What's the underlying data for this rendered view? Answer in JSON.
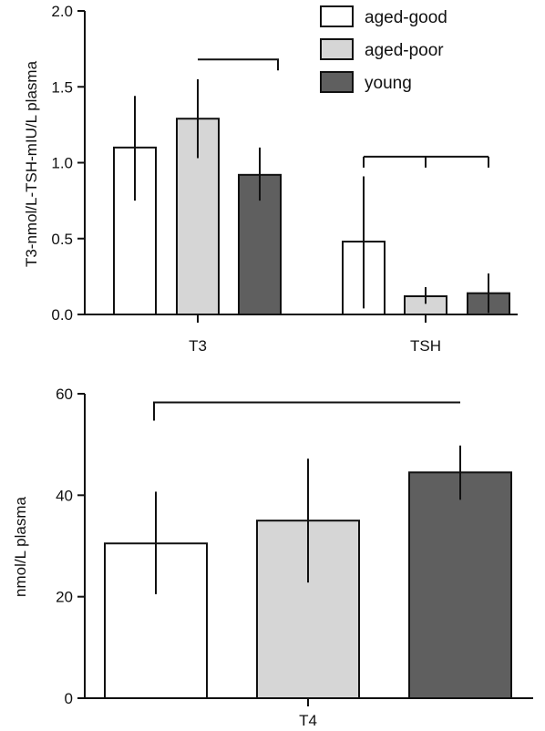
{
  "chart_data": [
    {
      "type": "bar",
      "title": "",
      "xlabel": "",
      "ylabel": "T3-nmol/L-TSH-mIU/L plasma",
      "ylim": [
        0,
        2.0
      ],
      "yticks": [
        "0.0",
        "0.5",
        "1.0",
        "1.5",
        "2.0"
      ],
      "categories": [
        "T3",
        "TSH"
      ],
      "series": [
        {
          "name": "aged-good",
          "values": [
            1.1,
            0.48
          ],
          "err_low": [
            0.75,
            0.04
          ],
          "err_high": [
            1.44,
            0.91
          ],
          "color": "#ffffff"
        },
        {
          "name": "aged-poor",
          "values": [
            1.29,
            0.12
          ],
          "err_low": [
            1.03,
            0.07
          ],
          "err_high": [
            1.55,
            0.18
          ],
          "color": "#d6d6d6"
        },
        {
          "name": "young",
          "values": [
            0.92,
            0.14
          ],
          "err_low": [
            0.75,
            0.01
          ],
          "err_high": [
            1.1,
            0.27
          ],
          "color": "#5f5f5f"
        }
      ],
      "significance": [
        {
          "category": "T3",
          "from_series": 1,
          "to_series": 2,
          "level": 1.68
        },
        {
          "category": "TSH",
          "from_series": 0,
          "to_series": 2,
          "level": 1.04
        }
      ],
      "legend": {
        "position": "top-right"
      },
      "grid": false
    },
    {
      "type": "bar",
      "title": "",
      "xlabel": "",
      "ylabel": "nmol/L plasma",
      "ylim": [
        0,
        60
      ],
      "yticks": [
        "0",
        "20",
        "40",
        "60"
      ],
      "categories": [
        "T4"
      ],
      "series": [
        {
          "name": "aged-good",
          "values": [
            30.5
          ],
          "err_low": [
            20.5
          ],
          "err_high": [
            40.7
          ],
          "color": "#ffffff"
        },
        {
          "name": "aged-poor",
          "values": [
            35.0
          ],
          "err_low": [
            22.8
          ],
          "err_high": [
            47.2
          ],
          "color": "#d6d6d6"
        },
        {
          "name": "young",
          "values": [
            44.5
          ],
          "err_low": [
            39.1
          ],
          "err_high": [
            49.8
          ],
          "color": "#5f5f5f"
        }
      ],
      "significance": [
        {
          "category": "T4",
          "from_series": 0,
          "to_series": 2,
          "level": 58.3
        }
      ],
      "grid": false
    }
  ]
}
